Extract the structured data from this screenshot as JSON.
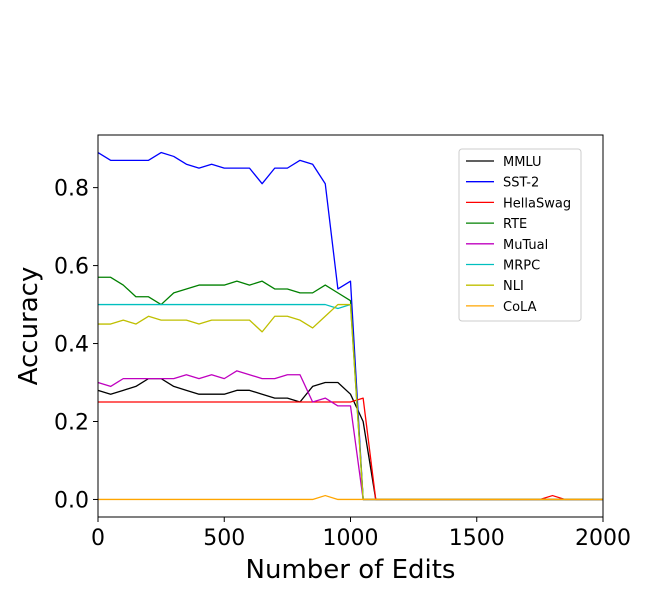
{
  "chart_data": {
    "type": "line",
    "title": "",
    "xlabel": "Number of Edits",
    "ylabel": "Accuracy",
    "xlim": [
      0,
      2000
    ],
    "ylim": [
      -0.045,
      0.935
    ],
    "xticks": [
      0,
      500,
      1000,
      1500,
      2000
    ],
    "xtick_labels": [
      "0",
      "500",
      "1000",
      "1500",
      "2000"
    ],
    "yticks": [
      0.0,
      0.2,
      0.4,
      0.6,
      0.8
    ],
    "ytick_labels": [
      "0.0",
      "0.2",
      "0.4",
      "0.6",
      "0.8"
    ],
    "grid": false,
    "legend_position": "top-right",
    "series": [
      {
        "name": "MMLU",
        "color": "#000000",
        "x": [
          0,
          50,
          100,
          150,
          200,
          250,
          300,
          350,
          400,
          450,
          500,
          550,
          600,
          650,
          700,
          750,
          800,
          850,
          900,
          950,
          1000,
          1050,
          1100,
          1800,
          1850,
          2000
        ],
        "y": [
          0.28,
          0.27,
          0.28,
          0.29,
          0.31,
          0.31,
          0.29,
          0.28,
          0.27,
          0.27,
          0.27,
          0.28,
          0.28,
          0.27,
          0.26,
          0.26,
          0.25,
          0.29,
          0.3,
          0.3,
          0.27,
          0.2,
          0,
          0,
          0,
          0
        ]
      },
      {
        "name": "SST-2",
        "color": "#0000ff",
        "x": [
          0,
          50,
          100,
          150,
          200,
          250,
          300,
          350,
          400,
          450,
          500,
          550,
          600,
          650,
          700,
          750,
          800,
          850,
          900,
          950,
          1000,
          1050,
          1100,
          2000
        ],
        "y": [
          0.89,
          0.87,
          0.87,
          0.87,
          0.87,
          0.89,
          0.88,
          0.86,
          0.85,
          0.86,
          0.85,
          0.85,
          0.85,
          0.81,
          0.85,
          0.85,
          0.87,
          0.86,
          0.81,
          0.54,
          0.56,
          0,
          0,
          0
        ]
      },
      {
        "name": "HellaSwag",
        "color": "#ff0000",
        "x": [
          0,
          100,
          200,
          300,
          400,
          500,
          600,
          700,
          800,
          900,
          1000,
          1050,
          1100,
          1750,
          1800,
          1850,
          2000
        ],
        "y": [
          0.25,
          0.25,
          0.25,
          0.25,
          0.25,
          0.25,
          0.25,
          0.25,
          0.25,
          0.25,
          0.25,
          0.26,
          0,
          0,
          0.01,
          0,
          0
        ]
      },
      {
        "name": "RTE",
        "color": "#008000",
        "x": [
          0,
          50,
          100,
          150,
          200,
          250,
          300,
          350,
          400,
          450,
          500,
          550,
          600,
          650,
          700,
          750,
          800,
          850,
          900,
          950,
          1000,
          1050,
          1100,
          2000
        ],
        "y": [
          0.57,
          0.57,
          0.55,
          0.52,
          0.52,
          0.5,
          0.53,
          0.54,
          0.55,
          0.55,
          0.55,
          0.56,
          0.55,
          0.56,
          0.54,
          0.54,
          0.53,
          0.53,
          0.55,
          0.53,
          0.51,
          0,
          0,
          0
        ]
      },
      {
        "name": "MuTual",
        "color": "#bf00bf",
        "x": [
          0,
          50,
          100,
          150,
          200,
          250,
          300,
          350,
          400,
          450,
          500,
          550,
          600,
          650,
          700,
          750,
          800,
          850,
          900,
          950,
          1000,
          1050,
          1100,
          2000
        ],
        "y": [
          0.3,
          0.29,
          0.31,
          0.31,
          0.31,
          0.31,
          0.31,
          0.32,
          0.31,
          0.32,
          0.31,
          0.33,
          0.32,
          0.31,
          0.31,
          0.32,
          0.32,
          0.25,
          0.26,
          0.24,
          0.24,
          0,
          0,
          0
        ]
      },
      {
        "name": "MRPC",
        "color": "#00bfbf",
        "x": [
          0,
          100,
          200,
          300,
          400,
          500,
          600,
          700,
          800,
          900,
          950,
          1000,
          1050,
          1100,
          2000
        ],
        "y": [
          0.5,
          0.5,
          0.5,
          0.5,
          0.5,
          0.5,
          0.5,
          0.5,
          0.5,
          0.5,
          0.49,
          0.5,
          0,
          0,
          0
        ]
      },
      {
        "name": "NLI",
        "color": "#bfbf00",
        "x": [
          0,
          50,
          100,
          150,
          200,
          250,
          300,
          350,
          400,
          450,
          500,
          550,
          600,
          650,
          700,
          750,
          800,
          850,
          900,
          950,
          1000,
          1050,
          1100,
          2000
        ],
        "y": [
          0.45,
          0.45,
          0.46,
          0.45,
          0.47,
          0.46,
          0.46,
          0.46,
          0.45,
          0.46,
          0.46,
          0.46,
          0.46,
          0.43,
          0.47,
          0.47,
          0.46,
          0.44,
          0.47,
          0.5,
          0.5,
          0,
          0,
          0
        ]
      },
      {
        "name": "CoLA",
        "color": "#ffa500",
        "x": [
          0,
          100,
          200,
          300,
          400,
          500,
          600,
          700,
          800,
          850,
          900,
          950,
          1000,
          1050,
          1100,
          2000
        ],
        "y": [
          0,
          0,
          0,
          0,
          0,
          0,
          0,
          0,
          0,
          0,
          0.01,
          0,
          0,
          0,
          0,
          0
        ]
      }
    ]
  }
}
